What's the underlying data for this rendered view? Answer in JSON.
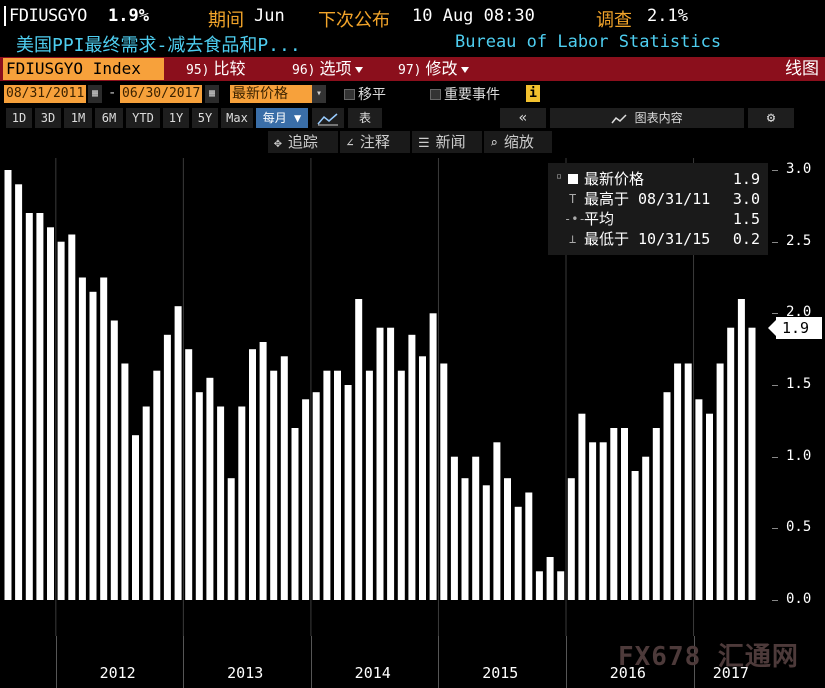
{
  "header": {
    "ticker": "FDIUSGYO",
    "last_value": "1.9%",
    "period_label": "期间",
    "period_value": "Jun",
    "next_release_label": "下次公布",
    "next_release_value": "10 Aug 08:30",
    "survey_label": "调查",
    "survey_value": "2.1%",
    "description": "美国PPI最终需求-减去食品和P...",
    "source": "Bureau of Labor Statistics"
  },
  "toolbar": {
    "index_field": "FDIUSGYO Index",
    "compare_num": "95)",
    "compare_label": "比较",
    "options_num": "96)",
    "options_label": "选项",
    "edit_num": "97)",
    "edit_label": "修改",
    "chart_type_label": "线图"
  },
  "range_bar": {
    "start_date": "08/31/2011",
    "separator": "-",
    "end_date": "06/30/2017",
    "price_field": "最新价格",
    "shift_label": "移平",
    "events_label": "重要事件",
    "info_icon_label": "i"
  },
  "periods": {
    "buttons": [
      "1D",
      "3D",
      "1M",
      "6M",
      "YTD",
      "1Y",
      "5Y",
      "Max"
    ],
    "frequency_label": "每月",
    "table_label": "表",
    "chart_content_label": "图表内容"
  },
  "chart_tools": {
    "track_label": "追踪",
    "annotate_label": "注释",
    "news_label": "新闻",
    "zoom_label": "缩放"
  },
  "legend": {
    "last_label": "最新价格",
    "last_value": "1.9",
    "high_label": "最高于 08/31/11",
    "high_value": "3.0",
    "avg_label": "平均",
    "avg_value": "1.5",
    "low_label": "最低于 10/31/15",
    "low_value": "0.2"
  },
  "last_value_tag": "1.9",
  "watermark_text": "FX678 汇通网",
  "chart_data": {
    "type": "bar",
    "title": "",
    "xlabel": "",
    "ylabel": "",
    "ylim": [
      0,
      3.0
    ],
    "yticks": [
      "0.0",
      "0.5",
      "1.0",
      "1.5",
      "2.0",
      "2.5",
      "3.0"
    ],
    "year_labels": [
      "2012",
      "2013",
      "2014",
      "2015",
      "2016",
      "2017"
    ],
    "start": "2011-08",
    "color": "#ffffff",
    "grid": "vertical",
    "legend_position": "top-right",
    "values": [
      3.0,
      2.9,
      2.7,
      2.7,
      2.6,
      2.5,
      2.55,
      2.25,
      2.15,
      2.25,
      1.95,
      1.65,
      1.15,
      1.35,
      1.6,
      1.85,
      2.05,
      1.75,
      1.45,
      1.55,
      1.35,
      0.85,
      1.35,
      1.75,
      1.8,
      1.6,
      1.7,
      1.2,
      1.4,
      1.45,
      1.6,
      1.6,
      1.5,
      2.1,
      1.6,
      1.9,
      1.9,
      1.6,
      1.85,
      1.7,
      2.0,
      1.65,
      1.0,
      0.85,
      1.0,
      0.8,
      1.1,
      0.85,
      0.65,
      0.75,
      0.2,
      0.3,
      0.2,
      0.85,
      1.3,
      1.1,
      1.1,
      1.2,
      1.2,
      0.9,
      1.0,
      1.2,
      1.45,
      1.65,
      1.65,
      1.4,
      1.3,
      1.65,
      1.9,
      2.1,
      1.9
    ]
  }
}
